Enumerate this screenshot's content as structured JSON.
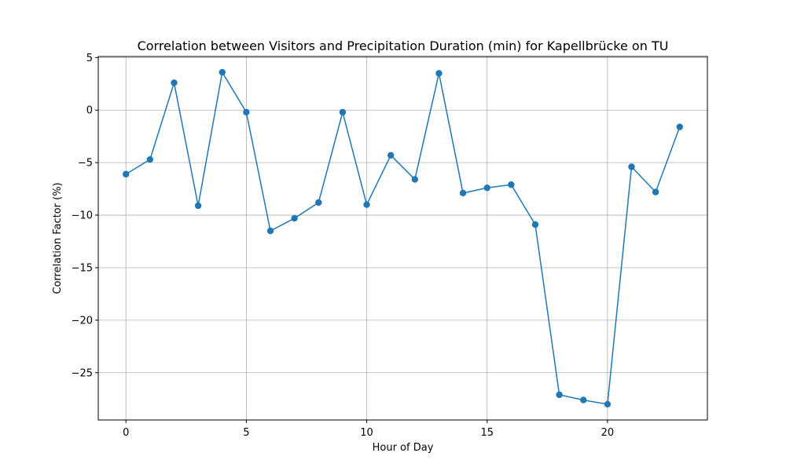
{
  "chart_data": {
    "type": "line",
    "title": "Correlation between Visitors and Precipitation Duration (min) for Kapellbrücke on TU",
    "xlabel": "Hour of Day",
    "ylabel": "Correlation Factor (%)",
    "xlim": [
      -1.15,
      24.15
    ],
    "ylim": [
      -29.5,
      5.1
    ],
    "xticks": [
      0,
      5,
      10,
      15,
      20
    ],
    "xtick_labels": [
      "0",
      "5",
      "10",
      "15",
      "20"
    ],
    "yticks": [
      5,
      0,
      -5,
      -10,
      -15,
      -20,
      -25
    ],
    "ytick_labels": [
      "5",
      "0",
      "−5",
      "−10",
      "−15",
      "−20",
      "−25"
    ],
    "grid": true,
    "color": "#1f77b4",
    "marker": "circle",
    "x": [
      0,
      1,
      2,
      3,
      4,
      5,
      6,
      7,
      8,
      9,
      10,
      11,
      12,
      13,
      14,
      15,
      16,
      17,
      18,
      19,
      20,
      21,
      22,
      23
    ],
    "values": [
      -6.1,
      -4.7,
      2.6,
      -9.1,
      3.6,
      -0.2,
      -11.5,
      -10.3,
      -8.8,
      -0.2,
      -9.0,
      -4.3,
      -6.6,
      3.5,
      -7.9,
      -7.4,
      -7.1,
      -10.9,
      -27.1,
      -27.6,
      -28.0,
      -5.4,
      -7.8,
      -1.6
    ]
  }
}
